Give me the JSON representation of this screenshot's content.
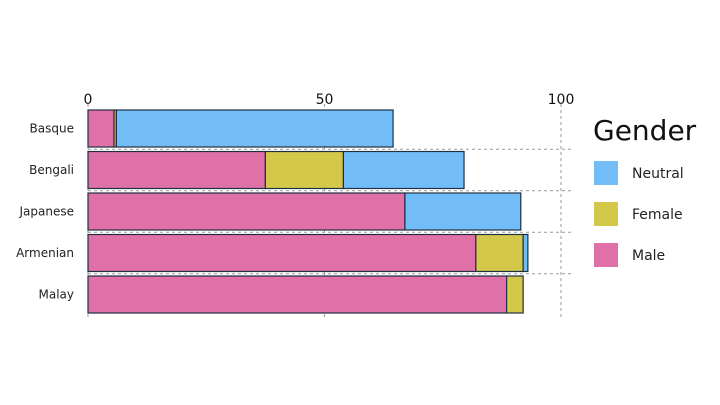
{
  "chart_data": {
    "type": "bar",
    "orientation": "horizontal",
    "stacked": true,
    "categories": [
      "Basque",
      "Bengali",
      "Japanese",
      "Armenian",
      "Malay"
    ],
    "series": [
      {
        "name": "Male",
        "color": "#e070a8",
        "values": [
          5.5,
          37.5,
          67,
          82,
          88.5
        ]
      },
      {
        "name": "Female",
        "color": "#d4c84a",
        "values": [
          0.5,
          16.5,
          0,
          10,
          3.5
        ]
      },
      {
        "name": "Neutral",
        "color": "#72bcf8",
        "values": [
          58.5,
          25.5,
          24.5,
          1,
          0
        ]
      }
    ],
    "xlim": [
      0,
      100
    ],
    "xticks": [
      "0",
      "50",
      "100"
    ],
    "legend": {
      "title": "Gender",
      "placement": "right",
      "entries": [
        "Neutral",
        "Female",
        "Male"
      ]
    },
    "grid": true
  }
}
